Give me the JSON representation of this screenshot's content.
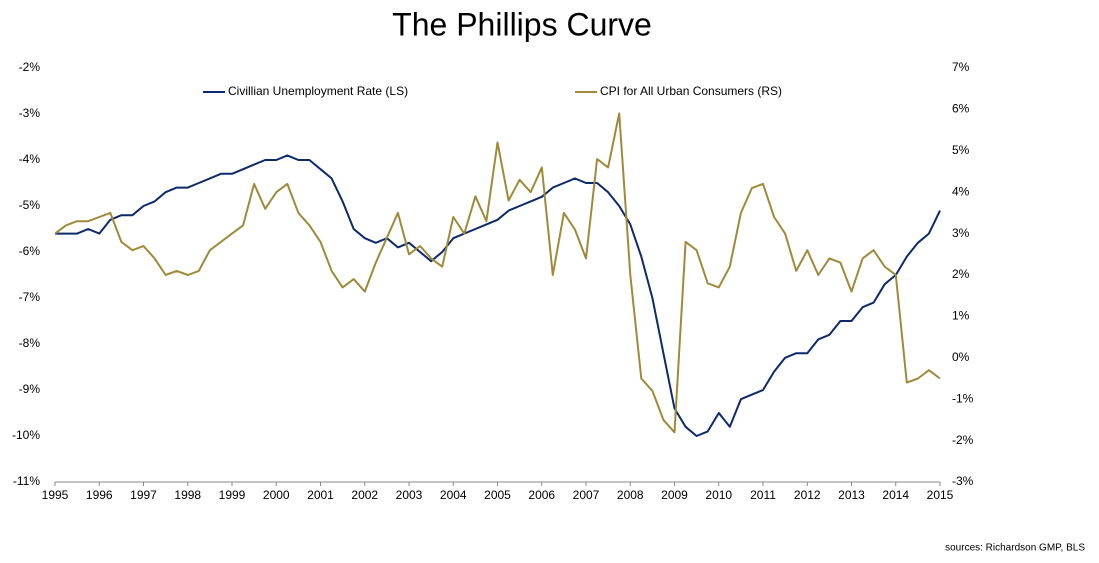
{
  "chart_data": {
    "type": "line",
    "title": "The Phillips Curve",
    "source": "sources: Richardson GMP, BLS",
    "x": [
      1995,
      1995.25,
      1995.5,
      1995.75,
      1996,
      1996.25,
      1996.5,
      1996.75,
      1997,
      1997.25,
      1997.5,
      1997.75,
      1998,
      1998.25,
      1998.5,
      1998.75,
      1999,
      1999.25,
      1999.5,
      1999.75,
      2000,
      2000.25,
      2000.5,
      2000.75,
      2001,
      2001.25,
      2001.5,
      2001.75,
      2002,
      2002.25,
      2002.5,
      2002.75,
      2003,
      2003.25,
      2003.5,
      2003.75,
      2004,
      2004.25,
      2004.5,
      2004.75,
      2005,
      2005.25,
      2005.5,
      2005.75,
      2006,
      2006.25,
      2006.5,
      2006.75,
      2007,
      2007.25,
      2007.5,
      2007.75,
      2008,
      2008.25,
      2008.5,
      2008.75,
      2009,
      2009.25,
      2009.5,
      2009.75,
      2010,
      2010.25,
      2010.5,
      2010.75,
      2011,
      2011.25,
      2011.5,
      2011.75,
      2012,
      2012.25,
      2012.5,
      2012.75,
      2013,
      2013.25,
      2013.5,
      2013.75,
      2014,
      2014.25,
      2014.5,
      2014.75,
      2015
    ],
    "series": [
      {
        "name": "Civillian Unemployment Rate (LS)",
        "color": "#0d2a6b",
        "axis": "y",
        "values": [
          -5.6,
          -5.6,
          -5.6,
          -5.5,
          -5.6,
          -5.3,
          -5.2,
          -5.2,
          -5.0,
          -4.9,
          -4.7,
          -4.6,
          -4.6,
          -4.5,
          -4.4,
          -4.3,
          -4.3,
          -4.2,
          -4.1,
          -4.0,
          -4.0,
          -3.9,
          -4.0,
          -4.0,
          -4.2,
          -4.4,
          -4.9,
          -5.5,
          -5.7,
          -5.8,
          -5.7,
          -5.9,
          -5.8,
          -6.0,
          -6.2,
          -6.0,
          -5.7,
          -5.6,
          -5.5,
          -5.4,
          -5.3,
          -5.1,
          -5.0,
          -4.9,
          -4.8,
          -4.6,
          -4.5,
          -4.4,
          -4.5,
          -4.5,
          -4.7,
          -5.0,
          -5.4,
          -6.1,
          -7.0,
          -8.2,
          -9.4,
          -9.8,
          -10.0,
          -9.9,
          -9.5,
          -9.8,
          -9.2,
          -9.1,
          -9.0,
          -8.6,
          -8.3,
          -8.2,
          -8.2,
          -7.9,
          -7.8,
          -7.5,
          -7.5,
          -7.2,
          -7.1,
          -6.7,
          -6.5,
          -6.1,
          -5.8,
          -5.6,
          -5.1
        ]
      },
      {
        "name": "CPI for All Urban Consumers (RS)",
        "color": "#a08a3a",
        "axis": "y2",
        "values": [
          3.0,
          3.2,
          3.3,
          3.3,
          3.4,
          3.5,
          2.8,
          2.6,
          2.7,
          2.4,
          2.0,
          2.1,
          2.0,
          2.1,
          2.6,
          2.8,
          3.0,
          3.2,
          4.2,
          3.6,
          4.0,
          4.2,
          3.5,
          3.2,
          2.8,
          2.1,
          1.7,
          1.9,
          1.6,
          2.3,
          2.9,
          3.5,
          2.5,
          2.7,
          2.4,
          2.2,
          3.4,
          3.0,
          3.9,
          3.3,
          5.2,
          3.8,
          4.3,
          4.0,
          4.6,
          2.0,
          3.5,
          3.1,
          2.4,
          4.8,
          4.6,
          5.9,
          2.0,
          -0.5,
          -0.8,
          -1.5,
          -1.8,
          2.8,
          2.6,
          1.8,
          1.7,
          2.2,
          3.5,
          4.1,
          4.2,
          3.4,
          3.0,
          2.1,
          2.6,
          2.0,
          2.4,
          2.3,
          1.6,
          2.4,
          2.6,
          2.2,
          2.0,
          -0.6,
          -0.5,
          -0.3,
          -0.5
        ]
      }
    ],
    "xlim": [
      1995,
      2015
    ],
    "xticks": [
      1995,
      1996,
      1997,
      1998,
      1999,
      2000,
      2001,
      2002,
      2003,
      2004,
      2005,
      2006,
      2007,
      2008,
      2009,
      2010,
      2011,
      2012,
      2013,
      2014,
      2015
    ],
    "ylim": [
      -11,
      -2
    ],
    "yticks": [
      {
        "value": -11,
        "label": "-11%"
      },
      {
        "value": -10,
        "label": "-10%"
      },
      {
        "value": -9,
        "label": "-9%"
      },
      {
        "value": -8,
        "label": "-8%"
      },
      {
        "value": -7,
        "label": "-7%"
      },
      {
        "value": -6,
        "label": "-6%"
      },
      {
        "value": -5,
        "label": "-5%"
      },
      {
        "value": -4,
        "label": "-4%"
      },
      {
        "value": -3,
        "label": "-3%"
      },
      {
        "value": -2,
        "label": "-2%"
      }
    ],
    "y2lim": [
      -3,
      7
    ],
    "y2ticks": [
      {
        "value": -3,
        "label": "-3%"
      },
      {
        "value": -2,
        "label": "-2%"
      },
      {
        "value": -1,
        "label": "-1%"
      },
      {
        "value": 0,
        "label": "0%"
      },
      {
        "value": 1,
        "label": "1%"
      },
      {
        "value": 2,
        "label": "2%"
      },
      {
        "value": 3,
        "label": "3%"
      },
      {
        "value": 4,
        "label": "4%"
      },
      {
        "value": 5,
        "label": "5%"
      },
      {
        "value": 6,
        "label": "6%"
      },
      {
        "value": 7,
        "label": "7%"
      }
    ],
    "legend": "top"
  }
}
